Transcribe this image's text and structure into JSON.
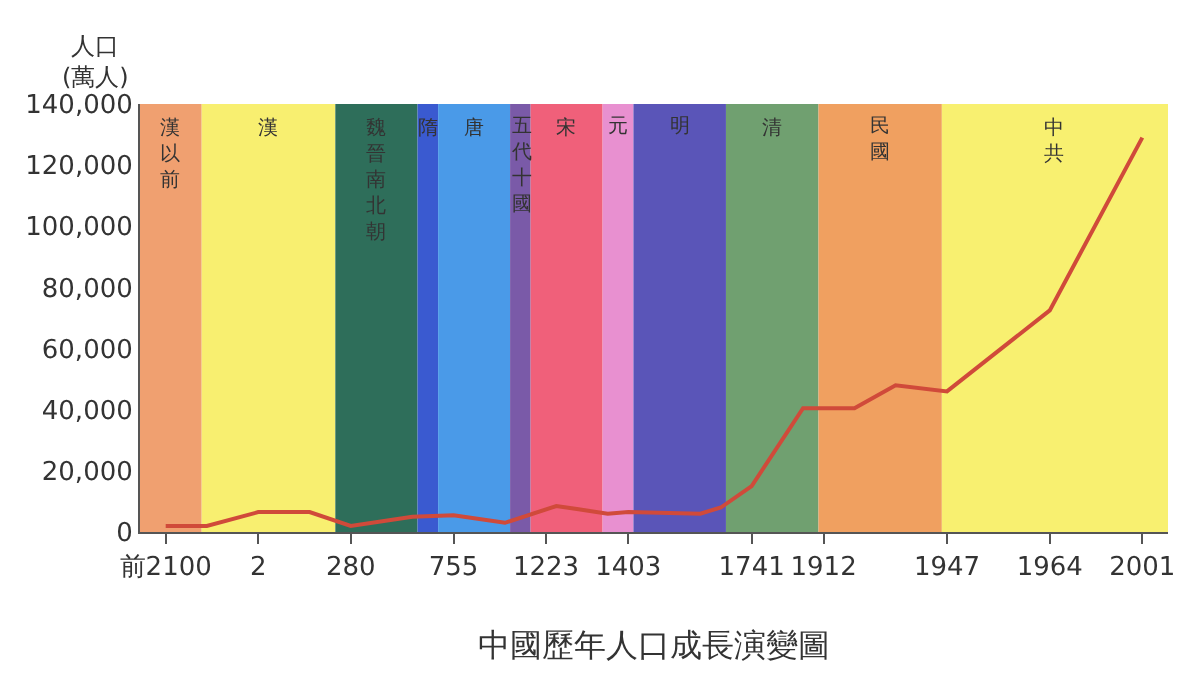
{
  "chart_data": {
    "type": "line",
    "title": "中國歷年人口成長演變圖",
    "ylabel": "人口 (萬人)",
    "categories": [
      null,
      null,
      "前2100",
      null,
      null,
      null,
      null,
      null,
      null,
      null,
      null,
      "2",
      null,
      null,
      null,
      null,
      null,
      null,
      null,
      null,
      "280",
      null,
      null,
      null,
      null,
      null,
      null,
      null,
      null,
      null,
      "755",
      null,
      null,
      null,
      null,
      null,
      null,
      null,
      null,
      "1223",
      null,
      null,
      null,
      null,
      null,
      null,
      null,
      "1403",
      null,
      null,
      null,
      null,
      null,
      null,
      null,
      null,
      null,
      null,
      null,
      "1741",
      null,
      null,
      null,
      null,
      null,
      null,
      "1912",
      null,
      null,
      null,
      null,
      null,
      null,
      null,
      null,
      null,
      null,
      null,
      "1947",
      null,
      null,
      null,
      null,
      null,
      null,
      null,
      null,
      null,
      "1964",
      null,
      null,
      null,
      null,
      null,
      null,
      null,
      null,
      "2001",
      null,
      null
    ],
    "series": [
      {
        "color": "#d04a3a",
        "values": [
          null,
          null,
          2000,
          null,
          null,
          null,
          2000,
          null,
          null,
          null,
          null,
          6500,
          null,
          null,
          null,
          null,
          6500,
          null,
          null,
          null,
          2000,
          null,
          null,
          null,
          null,
          null,
          5000,
          null,
          null,
          null,
          5500,
          null,
          null,
          null,
          null,
          3000,
          null,
          null,
          null,
          null,
          8500,
          null,
          7500,
          null,
          null,
          6000,
          null,
          6500,
          null,
          null,
          null,
          null,
          null,
          null,
          6000,
          null,
          8000,
          null,
          null,
          15000,
          null,
          null,
          null,
          null,
          40500,
          null,
          null,
          null,
          null,
          40500,
          null,
          null,
          null,
          48000,
          null,
          null,
          null,
          null,
          46000,
          null,
          null,
          null,
          null,
          null,
          null,
          null,
          null,
          null,
          72500,
          null,
          null,
          null,
          null,
          null,
          null,
          null,
          null,
          129000,
          null,
          null
        ]
      }
    ],
    "annotations": [
      "漢以前",
      "漢",
      "魏晉南北朝",
      "隋",
      "唐",
      "五代十國",
      "宋",
      "元",
      "明",
      "清",
      "民國",
      "中共"
    ],
    "ylim": [
      0,
      140000
    ],
    "yticks": [
      0,
      {
        "value": 20000,
        "label": "20,000"
      },
      {
        "value": 40000,
        "label": "40,000"
      },
      {
        "value": 60000,
        "label": "60,000"
      },
      {
        "value": 80000,
        "label": "80,000"
      },
      {
        "value": 100000,
        "label": "100,000"
      },
      {
        "value": 120000,
        "label": "120,000"
      },
      {
        "value": 140000,
        "label": "140,000"
      }
    ],
    "marker": "none",
    "line_style": "solid"
  }
}
